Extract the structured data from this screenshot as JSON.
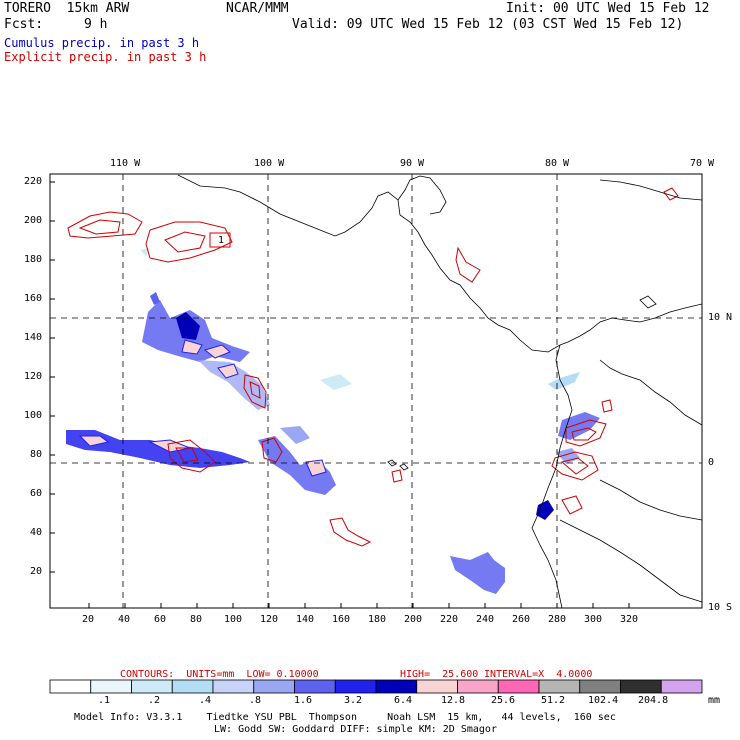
{
  "header": {
    "model": "TORERO  15km ARW",
    "org": "NCAR/MMM",
    "init": "Init: 00 UTC Wed 15 Feb 12",
    "fcst_label": "Fcst:",
    "fcst_value": "9 h",
    "valid": "Valid: 09 UTC Wed 15 Feb 12 (03 CST Wed 15 Feb 12)",
    "line_cumulus": "Cumulus precip. in past 3 h",
    "line_explicit": "Explicit precip. in past 3 h"
  },
  "colors": {
    "cumulus": "#0000c0",
    "explicit": "#d00000",
    "coast": "#000000",
    "grid": "#000000"
  },
  "lon_labels": [
    "110 W",
    "100 W",
    "90 W",
    "80 W",
    "70 W"
  ],
  "lat_labels": [
    "10 N",
    "0",
    "10 S"
  ],
  "y_ticks": [
    "220",
    "200",
    "180",
    "160",
    "140",
    "120",
    "100",
    "80",
    "60",
    "40",
    "20"
  ],
  "x_ticks": [
    "20",
    "40",
    "60",
    "80",
    "100",
    "120",
    "140",
    "160",
    "180",
    "200",
    "220",
    "240",
    "260",
    "280",
    "300",
    "320"
  ],
  "box_label": "1",
  "contour_info": {
    "label": "CONTOURS:  UNITS=mm  LOW= 0.10000",
    "high": "HIGH=  25.600",
    "interval": "INTERVAL=X  4.0000"
  },
  "colorbar": {
    "colors": [
      "#ffffff",
      "#eaf6fb",
      "#cdebf7",
      "#b3dcf5",
      "#c8d3f8",
      "#9aa7f2",
      "#5d63f0",
      "#2222ee",
      "#0000b8",
      "#f9d4d4",
      "#f8a5c9",
      "#ff66b3",
      "#b5b5b5",
      "#808080",
      "#303030",
      "#d4a3f0"
    ],
    "labels": [
      ".1",
      ".2",
      ".4",
      ".8",
      "1.6",
      "3.2",
      "6.4",
      "12.8",
      "25.6",
      "51.2",
      "102.4",
      "204.8"
    ],
    "units": "mm"
  },
  "footer": {
    "line1": "Model Info: V3.3.1    Tiedtke YSU PBL  Thompson     Noah LSM  15 km,   44 levels,  160 sec",
    "line2": "LW: Godd SW: Goddard DIFF: simple KM: 2D Smagor"
  }
}
